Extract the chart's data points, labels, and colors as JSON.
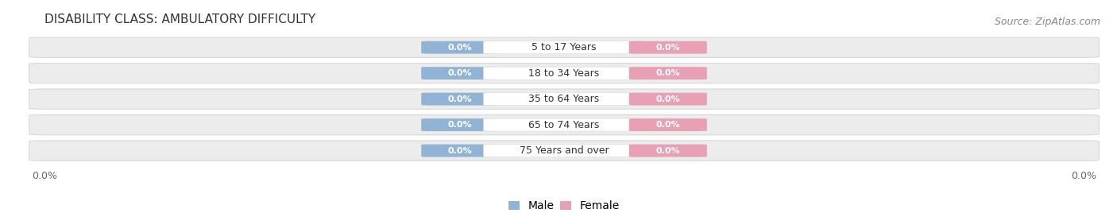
{
  "title": "DISABILITY CLASS: AMBULATORY DIFFICULTY",
  "source": "Source: ZipAtlas.com",
  "categories": [
    "5 to 17 Years",
    "18 to 34 Years",
    "35 to 64 Years",
    "65 to 74 Years",
    "75 Years and over"
  ],
  "male_values": [
    0.0,
    0.0,
    0.0,
    0.0,
    0.0
  ],
  "female_values": [
    0.0,
    0.0,
    0.0,
    0.0,
    0.0
  ],
  "male_color": "#92b4d4",
  "female_color": "#e8a0b4",
  "center_pill_color": "#ffffff",
  "row_bg_color": "#ececec",
  "row_border_color": "#d8d8d8",
  "x_left_label": "0.0%",
  "x_right_label": "0.0%",
  "title_fontsize": 11,
  "source_fontsize": 9,
  "tick_fontsize": 9,
  "legend_fontsize": 10,
  "category_fontsize": 9,
  "value_fontsize": 8,
  "fig_width": 14.06,
  "fig_height": 2.68,
  "dpi": 100
}
